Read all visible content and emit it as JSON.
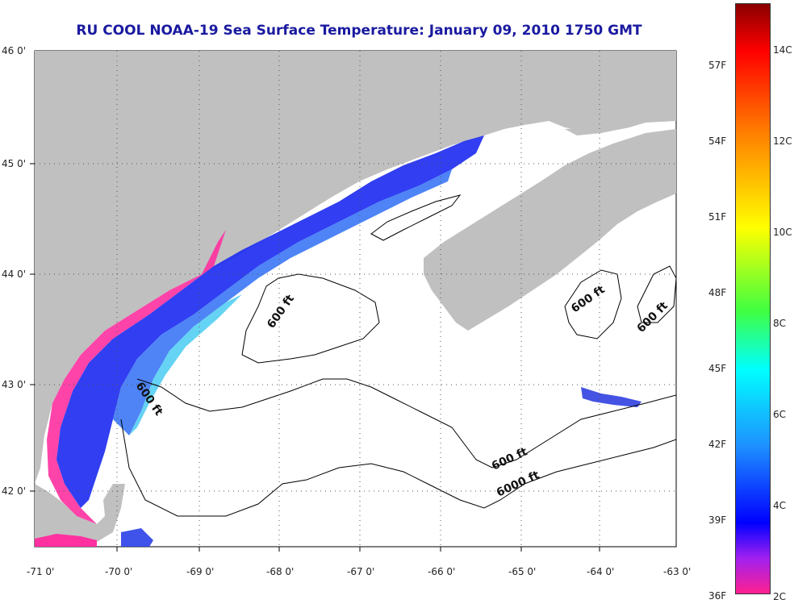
{
  "title": "RU COOL  NOAA-19  Sea Surface Temperature:  January 09, 2010 1750 GMT",
  "latitude_labels": [
    "46 0'",
    "45 0'",
    "44 0'",
    "43 0'",
    "42 0'"
  ],
  "longitude_labels": [
    "-71 0'",
    "-70 0'",
    "-69 0'",
    "-68 0'",
    "-67 0'",
    "-66 0'",
    "-65 0'",
    "-64 0'",
    "-63 0'"
  ],
  "depth_contour_labels": [
    "600 ft",
    "600 ft",
    "600 ft",
    "600 ft",
    "600 ft",
    "6000 ft"
  ],
  "colorbar": {
    "fahrenheit_labels": [
      "57F",
      "54F",
      "51F",
      "48F",
      "45F",
      "42F",
      "39F",
      "36F"
    ],
    "celsius_labels": [
      "14C",
      "12C",
      "10C",
      "8C",
      "6C",
      "4C",
      "2C"
    ],
    "colors": [
      "#8b0000",
      "#ff0000",
      "#ff8000",
      "#ffff00",
      "#40ff40",
      "#00ffff",
      "#1e90ff",
      "#0000ff",
      "#a020f0",
      "#ff2090"
    ]
  },
  "land_color": "#c0c0c0",
  "water_color": "#ffffff"
}
